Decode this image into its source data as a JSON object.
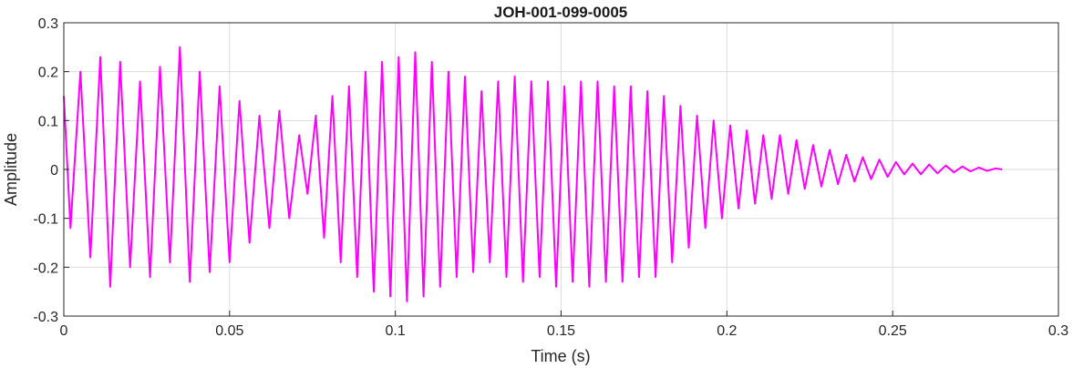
{
  "chart_data": {
    "type": "line",
    "title": "JOH-001-099-0005",
    "xlabel": "Time (s)",
    "ylabel": "Amplitude",
    "xlim": [
      0,
      0.3
    ],
    "ylim": [
      -0.3,
      0.3
    ],
    "x_ticks": [
      0,
      0.05,
      0.1,
      0.15,
      0.2,
      0.25,
      0.3
    ],
    "x_tick_labels": [
      "0",
      "0.05",
      "0.1",
      "0.15",
      "0.2",
      "0.25",
      "0.3"
    ],
    "y_ticks": [
      -0.3,
      -0.2,
      -0.1,
      0,
      0.1,
      0.2,
      0.3
    ],
    "y_tick_labels": [
      "-0.3",
      "-0.2",
      "-0.1",
      "0",
      "0.1",
      "0.2",
      "0.3"
    ],
    "grid": true,
    "line_color": "#ff00ff",
    "series": [
      {
        "name": "",
        "x": [
          0.0,
          0.002,
          0.005,
          0.008,
          0.011,
          0.014,
          0.017,
          0.02,
          0.023,
          0.026,
          0.029,
          0.032,
          0.035,
          0.038,
          0.041,
          0.044,
          0.047,
          0.05,
          0.053,
          0.056,
          0.059,
          0.062,
          0.065,
          0.068,
          0.071,
          0.0735,
          0.076,
          0.0785,
          0.081,
          0.0835,
          0.086,
          0.0885,
          0.091,
          0.0935,
          0.096,
          0.0985,
          0.101,
          0.1035,
          0.106,
          0.1085,
          0.111,
          0.1135,
          0.116,
          0.1185,
          0.121,
          0.1235,
          0.126,
          0.1285,
          0.131,
          0.1335,
          0.136,
          0.1385,
          0.141,
          0.1435,
          0.146,
          0.1485,
          0.151,
          0.1535,
          0.156,
          0.1585,
          0.161,
          0.1635,
          0.166,
          0.1685,
          0.171,
          0.1735,
          0.176,
          0.1785,
          0.181,
          0.1835,
          0.186,
          0.1885,
          0.191,
          0.1935,
          0.196,
          0.1985,
          0.201,
          0.2035,
          0.206,
          0.2085,
          0.211,
          0.2135,
          0.216,
          0.2185,
          0.221,
          0.2235,
          0.226,
          0.2285,
          0.231,
          0.2335,
          0.236,
          0.2385,
          0.241,
          0.2435,
          0.246,
          0.2485,
          0.251,
          0.2535,
          0.256,
          0.2585,
          0.261,
          0.2635,
          0.266,
          0.2685,
          0.271,
          0.2735,
          0.276,
          0.2785,
          0.281,
          0.283
        ],
        "y": [
          0.15,
          -0.12,
          0.2,
          -0.18,
          0.23,
          -0.24,
          0.22,
          -0.2,
          0.18,
          -0.22,
          0.21,
          -0.19,
          0.25,
          -0.23,
          0.2,
          -0.21,
          0.17,
          -0.19,
          0.14,
          -0.15,
          0.11,
          -0.12,
          0.12,
          -0.1,
          0.07,
          -0.05,
          0.11,
          -0.14,
          0.15,
          -0.19,
          0.17,
          -0.22,
          0.2,
          -0.25,
          0.22,
          -0.26,
          0.23,
          -0.27,
          0.24,
          -0.26,
          0.22,
          -0.24,
          0.2,
          -0.22,
          0.19,
          -0.21,
          0.16,
          -0.19,
          0.18,
          -0.22,
          0.19,
          -0.23,
          0.18,
          -0.22,
          0.18,
          -0.24,
          0.17,
          -0.23,
          0.18,
          -0.24,
          0.18,
          -0.23,
          0.17,
          -0.23,
          0.17,
          -0.22,
          0.16,
          -0.22,
          0.15,
          -0.19,
          0.13,
          -0.16,
          0.11,
          -0.12,
          0.1,
          -0.1,
          0.09,
          -0.08,
          0.08,
          -0.07,
          0.07,
          -0.06,
          0.07,
          -0.05,
          0.06,
          -0.04,
          0.05,
          -0.035,
          0.04,
          -0.03,
          0.03,
          -0.025,
          0.025,
          -0.02,
          0.02,
          -0.015,
          0.015,
          -0.01,
          0.012,
          -0.01,
          0.01,
          -0.008,
          0.008,
          -0.006,
          0.006,
          -0.004,
          0.004,
          -0.003,
          0.002,
          0.0
        ]
      }
    ]
  }
}
